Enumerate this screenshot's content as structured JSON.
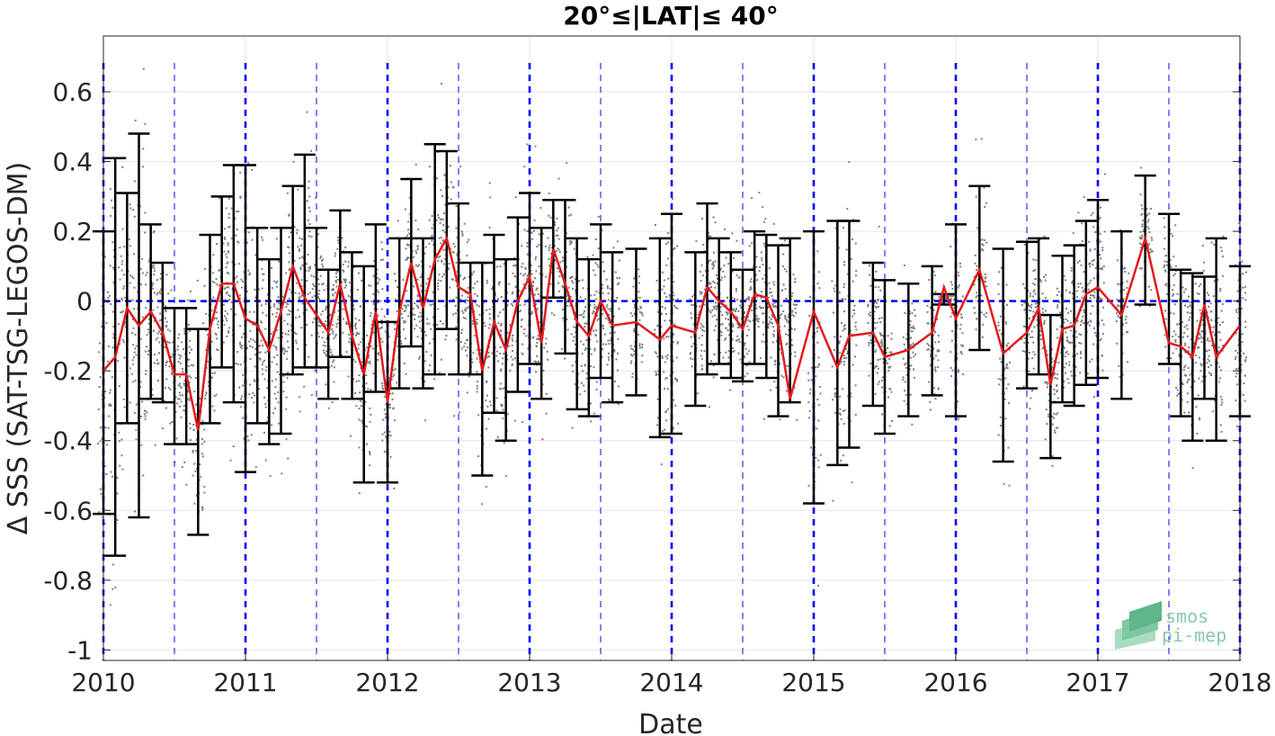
{
  "chart_data": {
    "type": "scatter",
    "title": "20°≤|LAT|≤ 40°",
    "xlabel": "Date",
    "ylabel": "Δ SSS (SAT-TSG-LEGOS-DM)",
    "xlim": [
      "2010-01-01",
      "2018-01-01"
    ],
    "ylim": [
      -1.03,
      0.76
    ],
    "x_ticks": [
      "2010",
      "2011",
      "2012",
      "2013",
      "2014",
      "2015",
      "2016",
      "2017",
      "2018"
    ],
    "y_ticks": [
      -1,
      -0.8,
      -0.6,
      -0.4,
      -0.2,
      0,
      0.2,
      0.4,
      0.6
    ],
    "grid": true,
    "reference_line": {
      "y": 0,
      "style": "blue dashed"
    },
    "year_lines": {
      "style": "blue dashed, thick at year start, thin at mid-year"
    },
    "series": [
      {
        "color": "#e41a1c",
        "style": "line",
        "points": [
          [
            "2010-01",
            -0.2
          ],
          [
            "2010-02",
            -0.16
          ],
          [
            "2010-03",
            -0.02
          ],
          [
            "2010-04",
            -0.07
          ],
          [
            "2010-05",
            -0.03
          ],
          [
            "2010-06",
            -0.09
          ],
          [
            "2010-07",
            -0.21
          ],
          [
            "2010-08",
            -0.21
          ],
          [
            "2010-09",
            -0.37
          ],
          [
            "2010-10",
            -0.08
          ],
          [
            "2010-11",
            0.05
          ],
          [
            "2010-12",
            0.05
          ],
          [
            "2011-01",
            -0.05
          ],
          [
            "2011-02",
            -0.07
          ],
          [
            "2011-03",
            -0.14
          ],
          [
            "2011-04",
            -0.03
          ],
          [
            "2011-05",
            0.1
          ],
          [
            "2011-06",
            0.01
          ],
          [
            "2011-08",
            -0.09
          ],
          [
            "2011-09",
            0.05
          ],
          [
            "2011-10",
            -0.1
          ],
          [
            "2011-11",
            -0.21
          ],
          [
            "2011-12",
            -0.03
          ],
          [
            "2012-01",
            -0.29
          ],
          [
            "2012-02",
            -0.03
          ],
          [
            "2012-03",
            0.11
          ],
          [
            "2012-04",
            -0.02
          ],
          [
            "2012-05",
            0.12
          ],
          [
            "2012-06",
            0.18
          ],
          [
            "2012-07",
            0.04
          ],
          [
            "2012-08",
            0.02
          ],
          [
            "2012-09",
            -0.2
          ],
          [
            "2012-10",
            -0.06
          ],
          [
            "2012-11",
            -0.14
          ],
          [
            "2012-12",
            0.0
          ],
          [
            "2013-01",
            0.07
          ],
          [
            "2013-02",
            -0.12
          ],
          [
            "2013-03",
            0.15
          ],
          [
            "2013-04",
            0.05
          ],
          [
            "2013-05",
            -0.06
          ],
          [
            "2013-06",
            -0.1
          ],
          [
            "2013-07",
            0.0
          ],
          [
            "2013-08",
            -0.07
          ],
          [
            "2013-10",
            -0.06
          ],
          [
            "2013-12",
            -0.11
          ],
          [
            "2014-01",
            -0.07
          ],
          [
            "2014-03",
            -0.09
          ],
          [
            "2014-04",
            0.04
          ],
          [
            "2014-05",
            0.0
          ],
          [
            "2014-06",
            -0.03
          ],
          [
            "2014-07",
            -0.08
          ],
          [
            "2014-08",
            0.02
          ],
          [
            "2014-09",
            0.01
          ],
          [
            "2014-10",
            -0.07
          ],
          [
            "2014-11",
            -0.28
          ],
          [
            "2015-01",
            -0.03
          ],
          [
            "2015-03",
            -0.19
          ],
          [
            "2015-04",
            -0.1
          ],
          [
            "2015-06",
            -0.09
          ],
          [
            "2015-07",
            -0.16
          ],
          [
            "2015-09",
            -0.14
          ],
          [
            "2015-11",
            -0.09
          ],
          [
            "2015-12",
            0.04
          ],
          [
            "2016-01",
            -0.05
          ],
          [
            "2016-03",
            0.09
          ],
          [
            "2016-05",
            -0.15
          ],
          [
            "2016-07",
            -0.09
          ],
          [
            "2016-08",
            -0.02
          ],
          [
            "2016-09",
            -0.24
          ],
          [
            "2016-10",
            -0.08
          ],
          [
            "2016-11",
            -0.07
          ],
          [
            "2016-12",
            0.02
          ],
          [
            "2017-01",
            0.04
          ],
          [
            "2017-03",
            -0.04
          ],
          [
            "2017-05",
            0.18
          ],
          [
            "2017-07",
            -0.12
          ],
          [
            "2017-08",
            -0.13
          ],
          [
            "2017-09",
            -0.16
          ],
          [
            "2017-10",
            -0.01
          ],
          [
            "2017-11",
            -0.16
          ],
          [
            "2018-01",
            -0.07
          ]
        ]
      },
      {
        "color": "#000000",
        "style": "errorbar",
        "points": [
          [
            "2010-01",
            0.2,
            -0.61
          ],
          [
            "2010-02",
            0.41,
            -0.73
          ],
          [
            "2010-03",
            0.31,
            -0.35
          ],
          [
            "2010-04",
            0.48,
            -0.62
          ],
          [
            "2010-05",
            0.22,
            -0.28
          ],
          [
            "2010-06",
            0.11,
            -0.29
          ],
          [
            "2010-07",
            -0.02,
            -0.41
          ],
          [
            "2010-08",
            -0.02,
            -0.41
          ],
          [
            "2010-09",
            -0.08,
            -0.67
          ],
          [
            "2010-10",
            0.19,
            -0.35
          ],
          [
            "2010-11",
            0.3,
            -0.19
          ],
          [
            "2010-12",
            0.39,
            -0.29
          ],
          [
            "2011-01",
            0.39,
            -0.49
          ],
          [
            "2011-02",
            0.21,
            -0.35
          ],
          [
            "2011-03",
            0.12,
            -0.41
          ],
          [
            "2011-04",
            0.21,
            -0.38
          ],
          [
            "2011-05",
            0.33,
            -0.21
          ],
          [
            "2011-06",
            0.42,
            -0.19
          ],
          [
            "2011-07",
            0.21,
            -0.19
          ],
          [
            "2011-08",
            0.09,
            -0.28
          ],
          [
            "2011-09",
            0.26,
            -0.16
          ],
          [
            "2011-10",
            0.14,
            -0.28
          ],
          [
            "2011-11",
            0.1,
            -0.52
          ],
          [
            "2011-12",
            0.22,
            -0.26
          ],
          [
            "2012-01",
            -0.06,
            -0.52
          ],
          [
            "2012-02",
            0.18,
            -0.25
          ],
          [
            "2012-03",
            0.35,
            -0.13
          ],
          [
            "2012-04",
            0.18,
            -0.25
          ],
          [
            "2012-05",
            0.45,
            -0.21
          ],
          [
            "2012-06",
            0.43,
            -0.08
          ],
          [
            "2012-07",
            0.28,
            -0.21
          ],
          [
            "2012-08",
            0.11,
            -0.21
          ],
          [
            "2012-09",
            0.11,
            -0.5
          ],
          [
            "2012-10",
            0.19,
            -0.32
          ],
          [
            "2012-11",
            0.12,
            -0.4
          ],
          [
            "2012-12",
            0.24,
            -0.26
          ],
          [
            "2013-01",
            0.31,
            -0.18
          ],
          [
            "2013-02",
            0.21,
            -0.28
          ],
          [
            "2013-03",
            0.29,
            0.01
          ],
          [
            "2013-04",
            0.29,
            -0.15
          ],
          [
            "2013-05",
            0.18,
            -0.31
          ],
          [
            "2013-06",
            0.12,
            -0.33
          ],
          [
            "2013-07",
            0.22,
            -0.22
          ],
          [
            "2013-08",
            0.14,
            -0.29
          ],
          [
            "2013-10",
            0.15,
            -0.27
          ],
          [
            "2013-12",
            0.18,
            -0.39
          ],
          [
            "2014-01",
            0.25,
            -0.38
          ],
          [
            "2014-03",
            0.14,
            -0.3
          ],
          [
            "2014-04",
            0.28,
            -0.21
          ],
          [
            "2014-05",
            0.18,
            -0.18
          ],
          [
            "2014-06",
            0.14,
            -0.22
          ],
          [
            "2014-07",
            0.09,
            -0.23
          ],
          [
            "2014-08",
            0.2,
            -0.18
          ],
          [
            "2014-09",
            0.19,
            -0.22
          ],
          [
            "2014-10",
            0.16,
            -0.33
          ],
          [
            "2014-11",
            0.18,
            -0.29
          ],
          [
            "2015-01",
            0.2,
            -0.58
          ],
          [
            "2015-03",
            0.23,
            -0.47
          ],
          [
            "2015-04",
            0.23,
            -0.42
          ],
          [
            "2015-06",
            0.11,
            -0.3
          ],
          [
            "2015-07",
            0.06,
            -0.38
          ],
          [
            "2015-09",
            0.05,
            -0.33
          ],
          [
            "2015-11",
            0.1,
            -0.27
          ],
          [
            "2015-12",
            0.02,
            -0.01
          ],
          [
            "2016-01",
            0.22,
            -0.33
          ],
          [
            "2016-03",
            0.33,
            -0.14
          ],
          [
            "2016-05",
            0.15,
            -0.46
          ],
          [
            "2016-07",
            0.17,
            -0.25
          ],
          [
            "2016-08",
            0.18,
            -0.21
          ],
          [
            "2016-09",
            -0.04,
            -0.45
          ],
          [
            "2016-10",
            0.13,
            -0.29
          ],
          [
            "2016-11",
            0.16,
            -0.3
          ],
          [
            "2016-12",
            0.23,
            -0.24
          ],
          [
            "2017-01",
            0.29,
            -0.22
          ],
          [
            "2017-03",
            0.2,
            -0.28
          ],
          [
            "2017-05",
            0.36,
            -0.01
          ],
          [
            "2017-07",
            0.25,
            -0.18
          ],
          [
            "2017-08",
            0.09,
            -0.33
          ],
          [
            "2017-09",
            0.08,
            -0.4
          ],
          [
            "2017-10",
            0.07,
            -0.28
          ],
          [
            "2017-11",
            0.18,
            -0.4
          ],
          [
            "2018-01",
            0.1,
            -0.33
          ]
        ]
      },
      {
        "color": "#7f7f7f",
        "style": "scatter points (dense vertical clusters of individual collocations)"
      }
    ]
  },
  "watermark": {
    "lines": [
      "smos",
      "pi-mep"
    ],
    "color": "#8cc7a8"
  }
}
